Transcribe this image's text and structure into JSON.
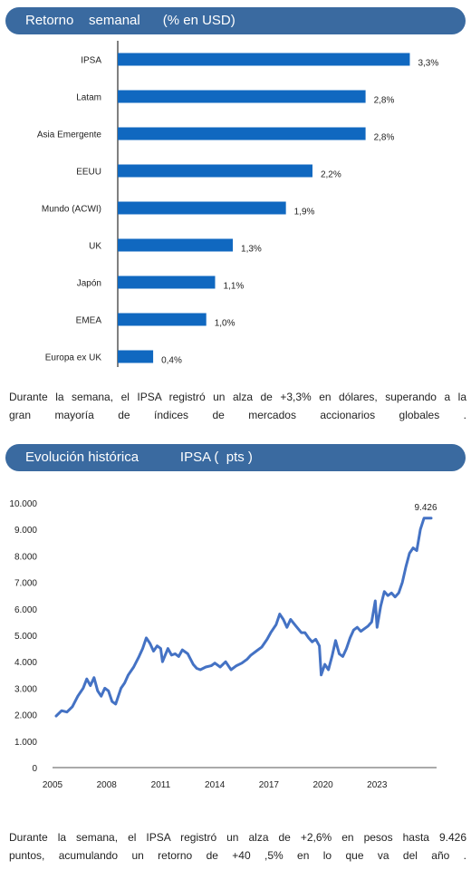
{
  "colors": {
    "header_bg": "#3a6aa0",
    "bar": "#1068c0",
    "line": "#4472c4",
    "axis": "#000000"
  },
  "section1": {
    "title": "Retorno    semanal      (% en USD)",
    "paragraph": [
      "Durante  la semana,  el IPSA registró  un alza de +3,3% en dólares,  superando   a la",
      "gran mayoría  de índices de mercados  accionarios  globales  ."
    ]
  },
  "section2": {
    "title": "Evolución histórica           IPSA (  pts )",
    "paragraph": [
      "Durante  la semana,   el IPSA registró  un alza de +2,6% en pesos  hasta  9.426",
      "puntos,  acumulando   un retorno de +40 ,5% en lo que va del año ."
    ]
  },
  "chart_data": [
    {
      "type": "bar",
      "orientation": "horizontal",
      "categories": [
        "IPSA",
        "Latam",
        "Asia Emergente",
        "EEUU",
        "Mundo (ACWI)",
        "UK",
        "Japón",
        "EMEA",
        "Europa ex UK"
      ],
      "values": [
        3.3,
        2.8,
        2.8,
        2.2,
        1.9,
        1.3,
        1.1,
        1.0,
        0.4
      ],
      "labels": [
        "3,3%",
        "2,8%",
        "2,8%",
        "2,2%",
        "1,9%",
        "1,3%",
        "1,1%",
        "1,0%",
        "0,4%"
      ],
      "xlim": [
        0,
        3.5
      ],
      "grid": false
    },
    {
      "type": "line",
      "x_ticks": [
        "2005",
        "2008",
        "2011",
        "2014",
        "2017",
        "2020",
        "2023"
      ],
      "y_ticks": [
        "0",
        "1.000",
        "2.000",
        "3.000",
        "4.000",
        "5.000",
        "6.000",
        "7.000",
        "8.000",
        "9.000",
        "10.000"
      ],
      "xlim": [
        2005,
        2026.3
      ],
      "ylim": [
        0,
        10000
      ],
      "annotation": "9.426",
      "grid": false,
      "series": [
        {
          "x": [
            2005.2,
            2005.5,
            2005.8,
            2006.1,
            2006.4,
            2006.7,
            2006.9,
            2007.1,
            2007.3,
            2007.5,
            2007.7,
            2007.9,
            2008.1,
            2008.3,
            2008.5,
            2008.8,
            2009.0,
            2009.2,
            2009.5,
            2009.8,
            2010.0,
            2010.2,
            2010.4,
            2010.6,
            2010.8,
            2011.0,
            2011.1,
            2011.4,
            2011.6,
            2011.8,
            2012.0,
            2012.2,
            2012.5,
            2012.8,
            2013.0,
            2013.2,
            2013.5,
            2013.8,
            2014.0,
            2014.3,
            2014.6,
            2014.9,
            2015.2,
            2015.5,
            2015.8,
            2016.0,
            2016.3,
            2016.6,
            2016.9,
            2017.1,
            2017.4,
            2017.6,
            2017.8,
            2018.0,
            2018.2,
            2018.5,
            2018.8,
            2019.0,
            2019.2,
            2019.4,
            2019.6,
            2019.8,
            2019.9,
            2020.1,
            2020.3,
            2020.5,
            2020.7,
            2020.9,
            2021.1,
            2021.3,
            2021.5,
            2021.7,
            2021.9,
            2022.1,
            2022.3,
            2022.5,
            2022.7,
            2022.9,
            2023.0,
            2023.2,
            2023.4,
            2023.6,
            2023.8,
            2024.0,
            2024.2,
            2024.4,
            2024.6,
            2024.8,
            2025.0,
            2025.2,
            2025.4,
            2025.6,
            2025.8,
            2026.0
          ],
          "y": [
            1950,
            2150,
            2100,
            2300,
            2700,
            3000,
            3350,
            3100,
            3400,
            2900,
            2700,
            3000,
            2900,
            2500,
            2400,
            3000,
            3200,
            3500,
            3800,
            4200,
            4500,
            4900,
            4700,
            4400,
            4600,
            4500,
            4000,
            4500,
            4250,
            4300,
            4200,
            4450,
            4300,
            3900,
            3750,
            3700,
            3800,
            3850,
            3950,
            3800,
            4000,
            3700,
            3850,
            3950,
            4100,
            4250,
            4400,
            4550,
            4850,
            5100,
            5400,
            5800,
            5600,
            5300,
            5600,
            5350,
            5100,
            5100,
            4900,
            4750,
            4850,
            4600,
            3500,
            3900,
            3700,
            4200,
            4800,
            4300,
            4200,
            4500,
            4900,
            5200,
            5300,
            5150,
            5250,
            5350,
            5500,
            6300,
            5300,
            6100,
            6650,
            6500,
            6600,
            6450,
            6600,
            7000,
            7600,
            8100,
            8300,
            8200,
            9000,
            9426,
            9426,
            9426
          ]
        }
      ]
    }
  ]
}
